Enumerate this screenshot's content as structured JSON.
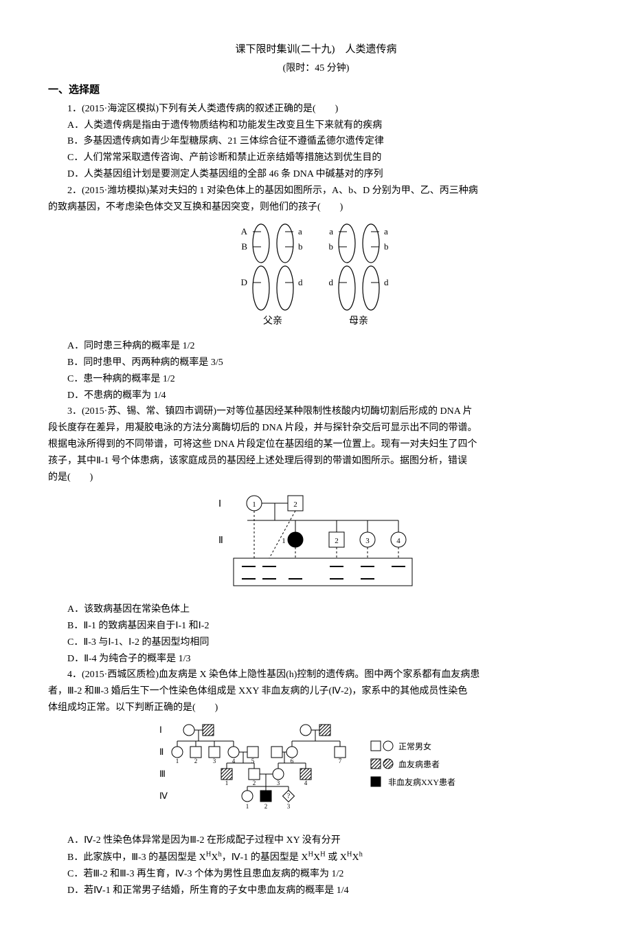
{
  "header": {
    "title": "课下限时集训(二十九)　人类遗传病",
    "subtitle": "(限时：45 分钟)"
  },
  "section1": {
    "heading": "一、选择题",
    "q1": {
      "stem": "1．(2015·海淀区模拟)下列有关人类遗传病的叙述正确的是(　　)",
      "A": "A．人类遗传病是指由于遗传物质结构和功能发生改变且生下来就有的疾病",
      "B": "B．多基因遗传病如青少年型糖尿病、21 三体综合征不遵循孟德尔遗传定律",
      "C": "C．人们常常采取遗传咨询、产前诊断和禁止近亲结婚等措施达到优生目的",
      "D": "D．人类基因组计划是要测定人类基因组的全部 46 条 DNA 中碱基对的序列"
    },
    "q2": {
      "stem1": "2．(2015·潍坊模拟)某对夫妇的 1 对染色体上的基因如图所示，A、b、D 分别为甲、乙、丙三种病",
      "stem2": "的致病基因，不考虑染色体交叉互换和基因突变，则他们的孩子(　　)",
      "fig": {
        "labels_left": [
          "A",
          "a",
          "B",
          "b",
          "D",
          "d"
        ],
        "labels_right": [
          "a",
          "a",
          "b",
          "b",
          "d",
          "d"
        ],
        "caption_left": "父亲",
        "caption_right": "母亲",
        "stroke": "#000000",
        "fill": "#ffffff"
      },
      "A": "A．同时患三种病的概率是 1/2",
      "B": "B．同时患甲、丙两种病的概率是 3/5",
      "C": "C．患一种病的概率是 1/2",
      "D": "D．不患病的概率为 1/4"
    },
    "q3": {
      "stem1": "3．(2015·苏、锡、常、镇四市调研)一对等位基因经某种限制性核酸内切酶切割后形成的 DNA 片",
      "stem2": "段长度存在差异，用凝胶电泳的方法分离酶切后的 DNA 片段，并与探针杂交后可显示出不同的带谱。",
      "stem3": "根据电泳所得到的不同带谱，可将这些 DNA 片段定位在基因组的某一位置上。现有一对夫妇生了四个",
      "stem4": "孩子，其中Ⅱ-1 号个体患病，该家庭成员的基因经上述处理后得到的带谱如图所示。据图分析，错误",
      "stem5": "的是(　　)",
      "fig": {
        "gen_labels": [
          "Ⅰ",
          "Ⅱ"
        ],
        "I_nums": [
          "1",
          "2"
        ],
        "II_nums": [
          "1",
          "2",
          "3",
          "4"
        ],
        "stroke": "#000000",
        "fill_white": "#ffffff",
        "fill_black": "#000000"
      },
      "A": "A．该致病基因在常染色体上",
      "B": "B．Ⅱ-1 的致病基因来自于Ⅰ-1 和Ⅰ-2",
      "C": "C．Ⅱ-3 与Ⅰ-1、Ⅰ-2 的基因型均相同",
      "D": "D．Ⅱ-4 为纯合子的概率是 1/3"
    },
    "q4": {
      "stem1": "4．(2015·西城区质检)血友病是 X 染色体上隐性基因(h)控制的遗传病。图中两个家系都有血友病患",
      "stem2": "者，Ⅲ-2 和Ⅲ-3 婚后生下一个性染色体组成是 XXY 非血友病的儿子(Ⅳ-2)，家系中的其他成员性染色",
      "stem3": "体组成均正常。以下判断正确的是(　　)",
      "fig": {
        "gen_labels": [
          "Ⅰ",
          "Ⅱ",
          "Ⅲ",
          "Ⅳ"
        ],
        "legend": {
          "normal": "正常男女",
          "hemoph": "血友病患者",
          "xxy": "非血友病XXY患者"
        },
        "stroke": "#000000",
        "fill_white": "#ffffff",
        "fill_black": "#000000",
        "hatch": "#000000"
      },
      "A_html": "A．Ⅳ-2 性染色体异常是因为Ⅲ-2 在形成配子过程中 XY 没有分开",
      "B_html": "B．此家族中，Ⅲ-3 的基因型是 X<sup>H</sup>X<sup>h</sup>，Ⅳ-1 的基因型是 X<sup>H</sup>X<sup>H</sup> 或 X<sup>H</sup>X<sup>h</sup>",
      "C_html": "C．若Ⅲ-2 和Ⅲ-3 再生育，Ⅳ-3 个体为男性且患血友病的概率为 1/2",
      "D_html": "D．若Ⅳ-1 和正常男子结婚，所生育的子女中患血友病的概率是 1/4"
    }
  }
}
